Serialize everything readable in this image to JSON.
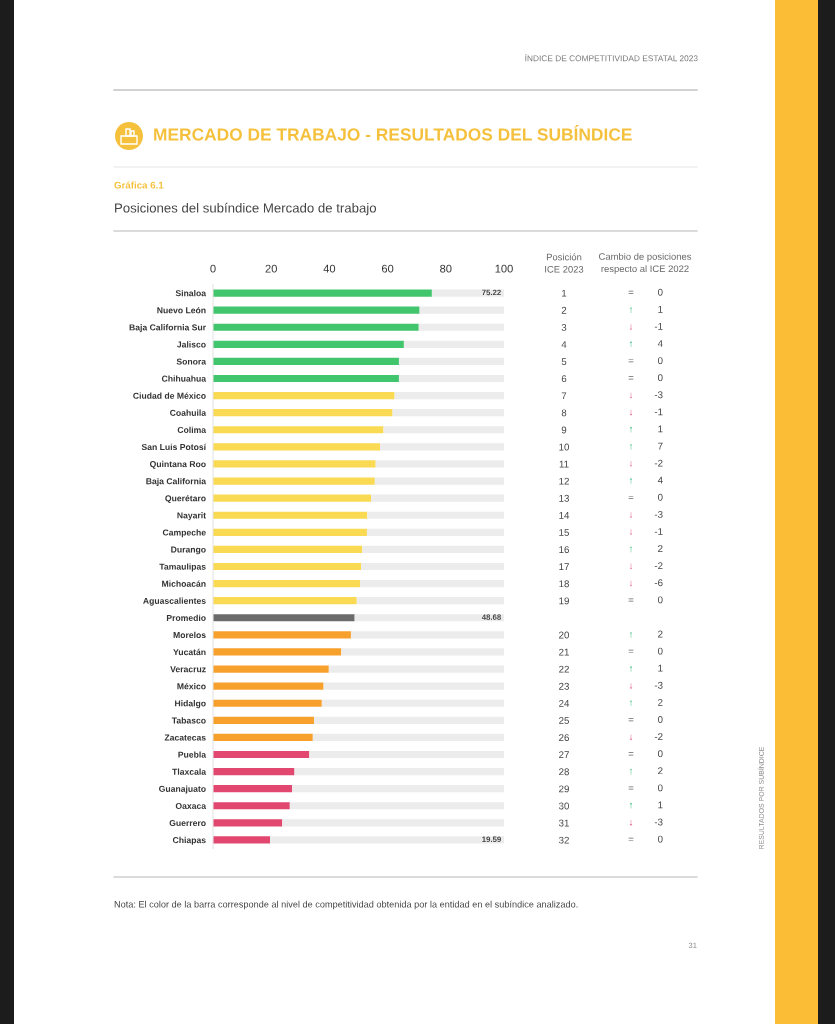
{
  "chart_data": [
    {
      "type": "bar",
      "orientation": "horizontal",
      "stacked": true,
      "title": "MERCADO DE TRABAJO - RESULTADOS DEL SUBÍNDICE",
      "subtitle": "Posiciones del subíndice Mercado de trabajo",
      "annotations": [
        "ÍNDICE DE COMPETITIVIDAD ESTATAL 2023",
        "Gráfica 6.1",
        "Nota: El color de la barra corresponde al nivel de competitividad obtenida por la entidad en el subíndice analizado.",
        "RESULTADOS POR SUBÍNDICE",
        "31",
        {
          "text": "75.22",
          "y": "Sinaloa"
        },
        {
          "text": "48.68",
          "y": "Promedio"
        },
        {
          "text": "19.59",
          "y": "Chiapas"
        }
      ],
      "categories": [
        "Sinaloa",
        "Nuevo León",
        "Baja California Sur",
        "Jalisco",
        "Sonora",
        "Chihuahua",
        "Ciudad de México",
        "Coahuila",
        "Colima",
        "San Luis Potosí",
        "Quintana Roo",
        "Baja California",
        "Querétaro",
        "Nayarit",
        "Campeche",
        "Durango",
        "Tamaulipas",
        "Michoacán",
        "Aguascalientes",
        "Promedio",
        "Morelos",
        "Yucatán",
        "Veracruz",
        "México",
        "Hidalgo",
        "Tabasco",
        "Zacatecas",
        "Puebla",
        "Tlaxcala",
        "Guanajuato",
        "Oaxaca",
        "Guerrero",
        "Chiapas"
      ],
      "y2_categories": [
        "1",
        "2",
        "3",
        "4",
        "5",
        "6",
        "7",
        "8",
        "9",
        "10",
        "11",
        "12",
        "13",
        "14",
        "15",
        "16",
        "17",
        "18",
        "19",
        null,
        "20",
        "21",
        "22",
        "23",
        "24",
        "25",
        "26",
        "27",
        "28",
        "29",
        "30",
        "31",
        "32"
      ],
      "y2label": "Posición\nICE 2023",
      "series": [
        {
          "colors": [
            "#41c56d",
            "#41c56d",
            "#41c56d",
            "#41c56d",
            "#41c56d",
            "#41c56d",
            "#f9da52",
            "#f9da52",
            "#f9da52",
            "#f9da52",
            "#f9da52",
            "#f9da52",
            "#f9da52",
            "#f9da52",
            "#f9da52",
            "#f9da52",
            "#f9da52",
            "#f9da52",
            "#f9da52",
            "#6b6b6b",
            "#f7a02c",
            "#f7a02c",
            "#f7a02c",
            "#f7a02c",
            "#f7a02c",
            "#f7a02c",
            "#f7a02c",
            "#e2476f",
            "#e2476f",
            "#e2476f",
            "#e2476f",
            "#e2476f",
            "#e2476f"
          ],
          "values": [
            75.22,
            71.0,
            70.7,
            65.6,
            63.9,
            63.9,
            62.4,
            61.7,
            58.6,
            57.4,
            55.9,
            55.6,
            54.3,
            53.0,
            52.9,
            51.3,
            50.9,
            50.6,
            49.4,
            48.68,
            47.4,
            44.1,
            39.8,
            38.0,
            37.4,
            34.7,
            34.3,
            33.1,
            28.0,
            27.2,
            26.4,
            23.8,
            19.59
          ]
        },
        {
          "color": "#ececec",
          "values": [
            24.8,
            29.0,
            29.3,
            34.4,
            36.1,
            36.1,
            37.6,
            38.3,
            41.4,
            42.6,
            44.1,
            44.4,
            45.7,
            47.0,
            47.1,
            48.7,
            49.1,
            49.4,
            50.6,
            51.3,
            52.6,
            55.9,
            60.2,
            62.0,
            62.6,
            65.3,
            65.7,
            66.9,
            72.0,
            72.8,
            73.6,
            76.2,
            80.4
          ]
        }
      ],
      "xlim": [
        0,
        100
      ],
      "xticks": [
        0,
        20,
        40,
        60,
        80,
        100
      ]
    },
    {
      "type": "other",
      "title": "Cambio de posiciones\nrespecto al ICE 2022",
      "categories": [
        "=",
        "↑",
        "↓",
        "↑",
        "=",
        "=",
        "↓",
        "↓",
        "↑",
        "↑",
        "↓",
        "↑",
        "=",
        "↓",
        "↓",
        "↑",
        "↓",
        "↓",
        "=",
        null,
        "↑",
        "=",
        "↑",
        "↓",
        "↑",
        "=",
        "↓",
        "=",
        "↑",
        "=",
        "↑",
        "↓",
        "="
      ],
      "colors": [
        "#666666",
        "#22b573",
        "#e0457b",
        "#22b573",
        "#666666",
        "#666666",
        "#e0457b",
        "#e0457b",
        "#22b573",
        "#22b573",
        "#e0457b",
        "#22b573",
        "#666666",
        "#e0457b",
        "#e0457b",
        "#22b573",
        "#e0457b",
        "#e0457b",
        "#666666",
        null,
        "#22b573",
        "#666666",
        "#22b573",
        "#e0457b",
        "#22b573",
        "#666666",
        "#e0457b",
        "#666666",
        "#22b573",
        "#666666",
        "#22b573",
        "#e0457b",
        "#666666"
      ],
      "values": [
        0,
        1,
        -1,
        4,
        0,
        0,
        -3,
        -1,
        1,
        7,
        -2,
        4,
        0,
        -3,
        -1,
        2,
        -2,
        -6,
        0,
        null,
        2,
        0,
        1,
        -3,
        2,
        0,
        -2,
        0,
        2,
        0,
        1,
        -3,
        0
      ],
      "data_labels": true
    }
  ]
}
